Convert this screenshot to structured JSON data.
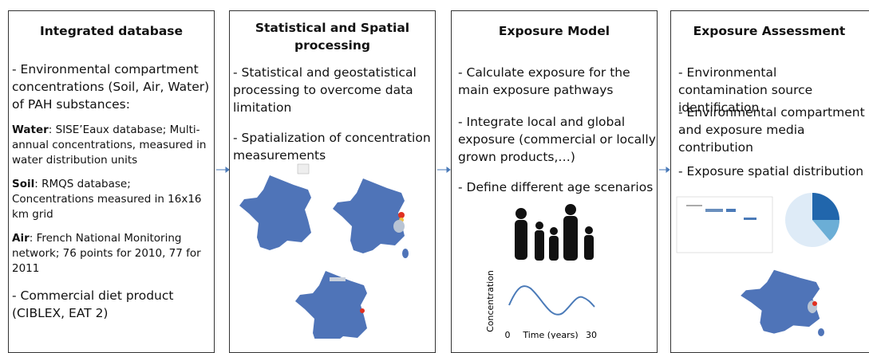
{
  "panels": [
    {
      "title": "Integrated database",
      "items": [
        {
          "text": "- Environmental compartment concentrations (Soil, Air, Water) of PAH substances:"
        },
        {
          "label": "Water",
          "text": ": SISE’Eaux database; Multi-annual concentrations, measured in water distribution units"
        },
        {
          "label": "Soil",
          "text": ": RMQS database; Concentrations measured in 16x16 km grid"
        },
        {
          "label": "Air",
          "text": ": French National Monitoring network; 76 points for 2010, 77 for 2011"
        },
        {
          "text": "- Commercial diet product (CIBLEX, EAT 2)"
        }
      ]
    },
    {
      "title": "Statistical and Spatial processing",
      "items": [
        {
          "text": "- Statistical and geostatistical processing to overcome data limitation"
        },
        {
          "text": "- Spatialization of concentration measurements"
        }
      ]
    },
    {
      "title": "Exposure Model",
      "items": [
        {
          "text": "- Calculate exposure for the main exposure pathways"
        },
        {
          "text": "- Integrate local and global exposure (commercial or locally grown products,…)"
        },
        {
          "text": "- Define different age scenarios"
        }
      ],
      "graph": {
        "y_label": "Concentration",
        "x_start": "0",
        "x_label": "Time (years)",
        "x_end": "30"
      }
    },
    {
      "title": "Exposure Assessment",
      "items": [
        {
          "text": "- Environmental contamination source identification"
        },
        {
          "text": "- Environmental compartment and exposure media contribution"
        },
        {
          "text": "- Exposure spatial distribution"
        }
      ]
    }
  ]
}
